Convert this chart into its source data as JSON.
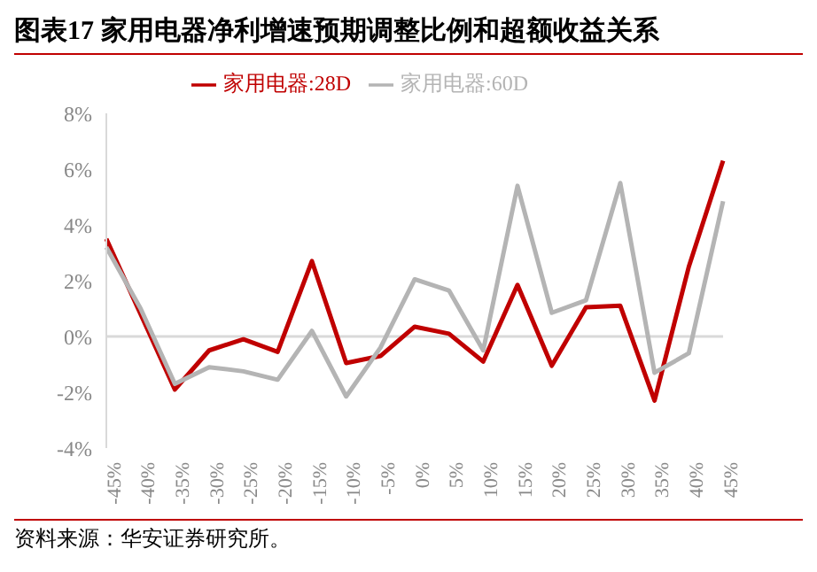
{
  "chart_data": {
    "type": "line",
    "title": "图表17 家用电器净利增速预期调整比例和超额收益关系",
    "categories": [
      "-45%",
      "-40%",
      "-35%",
      "-30%",
      "-25%",
      "-20%",
      "-15%",
      "-10%",
      "-5%",
      "0%",
      "5%",
      "10%",
      "15%",
      "20%",
      "25%",
      "30%",
      "35%",
      "40%",
      "45%"
    ],
    "series": [
      {
        "name": "家用电器:28D",
        "color": "#c00000",
        "values": [
          3.5,
          0.8,
          -1.9,
          -0.5,
          -0.1,
          -0.55,
          2.7,
          -0.95,
          -0.7,
          0.35,
          0.1,
          -0.9,
          1.85,
          -1.05,
          1.05,
          1.1,
          -2.3,
          2.5,
          6.3
        ]
      },
      {
        "name": "家用电器:60D",
        "color": "#b4b4b4",
        "values": [
          3.2,
          1.0,
          -1.7,
          -1.1,
          -1.25,
          -1.55,
          0.2,
          -2.15,
          -0.4,
          2.05,
          1.65,
          -0.5,
          5.4,
          0.85,
          1.3,
          5.5,
          -1.3,
          -0.6,
          4.85
        ]
      }
    ],
    "ylim": [
      -4,
      8
    ],
    "yticks": [
      {
        "value": -4,
        "label": "-4%"
      },
      {
        "value": -2,
        "label": "-2%"
      },
      {
        "value": 0,
        "label": "0%"
      },
      {
        "value": 2,
        "label": "2%"
      },
      {
        "value": 4,
        "label": "4%"
      },
      {
        "value": 6,
        "label": "6%"
      },
      {
        "value": 8,
        "label": "8%"
      }
    ],
    "ref_lines": [
      {
        "axis": "y",
        "value": 0,
        "color": "#d9d9d9"
      }
    ],
    "grid": false,
    "legend": "top",
    "marker": "none",
    "line_style": "solid",
    "annotations": [
      "资料来源：华安证券研究所。"
    ]
  }
}
